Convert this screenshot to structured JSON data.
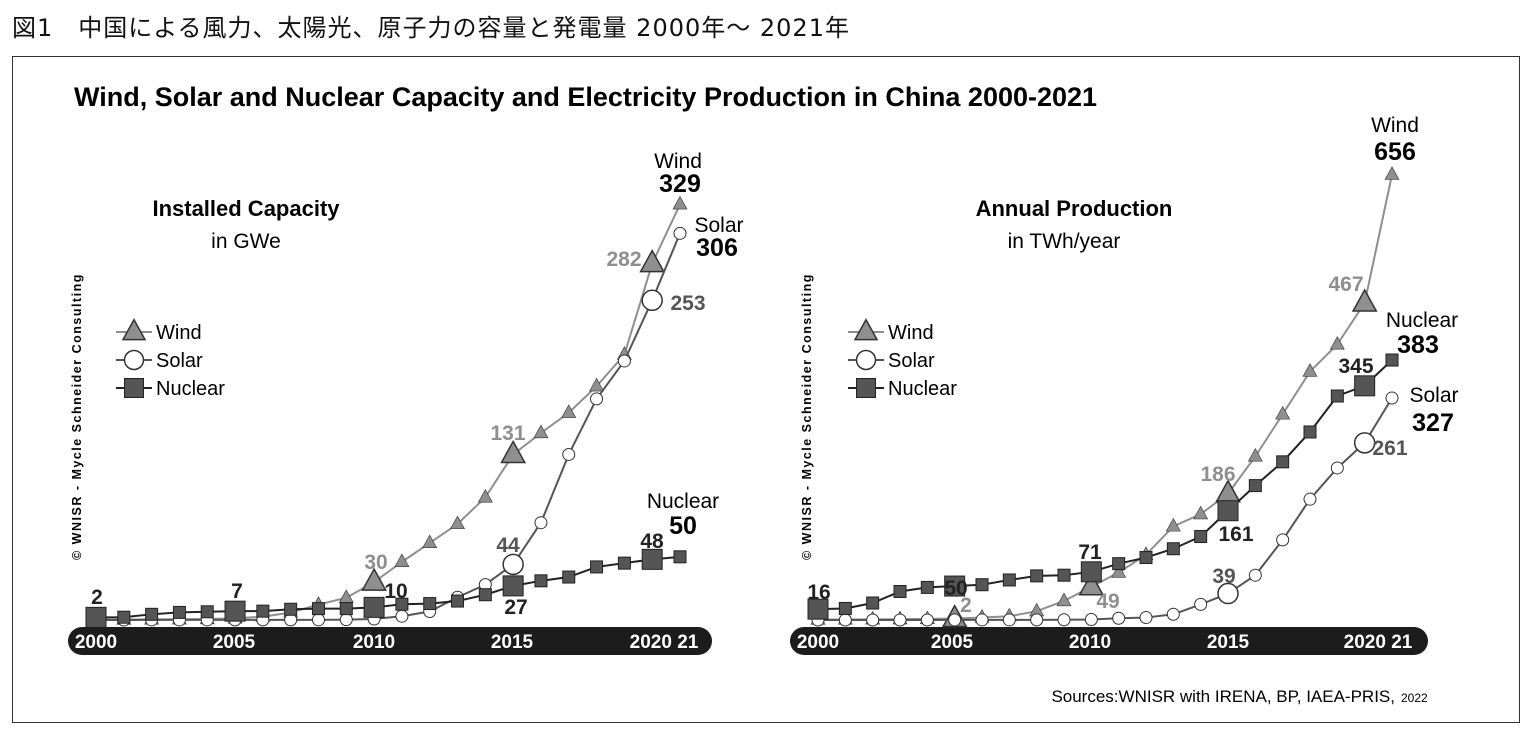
{
  "page_title": "図1　中国による風力、太陽光、原子力の容量と発電量 2000年〜 2021年",
  "figure": {
    "title": "Wind, Solar and Nuclear Capacity and Electricity Production in China 2000-2021",
    "copyright": "© WNISR - Mycle Schneider Consulting",
    "sources": "Sources:WNISR with IRENA, BP, IAEA-PRIS,",
    "sources_year": "2022"
  },
  "colors": {
    "wind": "#8f8f8f",
    "solar": "#555555",
    "nuclear": "#222222",
    "axis_band": "#1c1c1c"
  },
  "chart_data": [
    {
      "type": "line",
      "title": "Installed Capacity",
      "subtitle": "in GWe",
      "x": [
        2000,
        2001,
        2002,
        2003,
        2004,
        2005,
        2006,
        2007,
        2008,
        2009,
        2010,
        2011,
        2012,
        2013,
        2014,
        2015,
        2016,
        2017,
        2018,
        2019,
        2020,
        2021
      ],
      "x_tick_labels": [
        "2000",
        "2005",
        "2010",
        "2015",
        "2020 21"
      ],
      "ylim": [
        0,
        330
      ],
      "legend": [
        "Wind",
        "Solar",
        "Nuclear"
      ],
      "legend_position": "left",
      "series": [
        {
          "name": "Wind",
          "marker": "triangle",
          "values": [
            0.3,
            0.4,
            0.5,
            0.6,
            0.8,
            1.3,
            2.6,
            5.9,
            12.2,
            17.6,
            30,
            46,
            61,
            76,
            97,
            131,
            148,
            164,
            185,
            210,
            282,
            329
          ]
        },
        {
          "name": "Solar",
          "marker": "circle",
          "values": [
            0.02,
            0.02,
            0.05,
            0.05,
            0.06,
            0.07,
            0.08,
            0.1,
            0.14,
            0.3,
            0.8,
            3,
            6.7,
            18,
            28,
            44,
            77,
            131,
            175,
            205,
            253,
            306
          ]
        },
        {
          "name": "Nuclear",
          "marker": "square",
          "values": [
            2.1,
            2.2,
            4.5,
            6,
            6.5,
            7,
            7,
            8.5,
            9,
            9,
            10,
            12.5,
            13,
            15,
            20,
            27,
            31,
            34,
            42,
            45,
            48,
            50
          ]
        }
      ],
      "annotations": [
        {
          "label": "2",
          "series": "Nuclear",
          "year": 2000
        },
        {
          "label": "7",
          "series": "Nuclear",
          "year": 2005
        },
        {
          "label": "10",
          "series": "Nuclear",
          "year": 2010
        },
        {
          "label": "30",
          "series": "Wind",
          "year": 2010
        },
        {
          "label": "131",
          "series": "Wind",
          "year": 2015
        },
        {
          "label": "44",
          "series": "Solar",
          "year": 2015
        },
        {
          "label": "27",
          "series": "Nuclear",
          "year": 2015
        },
        {
          "label": "282",
          "series": "Wind",
          "year": 2020
        },
        {
          "label": "253",
          "series": "Solar",
          "year": 2020
        },
        {
          "label": "48",
          "series": "Nuclear",
          "year": 2020
        }
      ],
      "end_labels": [
        {
          "series": "Wind",
          "name": "Wind",
          "value": "329"
        },
        {
          "series": "Solar",
          "name": "Solar",
          "value": "306"
        },
        {
          "series": "Nuclear",
          "name": "Nuclear",
          "value": "50"
        }
      ]
    },
    {
      "type": "line",
      "title": "Annual Production",
      "subtitle": "in TWh/year",
      "x": [
        2000,
        2001,
        2002,
        2003,
        2004,
        2005,
        2006,
        2007,
        2008,
        2009,
        2010,
        2011,
        2012,
        2013,
        2014,
        2015,
        2016,
        2017,
        2018,
        2019,
        2020,
        2021
      ],
      "x_tick_labels": [
        "2000",
        "2005",
        "2010",
        "2015",
        "2020 21"
      ],
      "ylim": [
        0,
        660
      ],
      "legend": [
        "Wind",
        "Solar",
        "Nuclear"
      ],
      "legend_position": "left",
      "series": [
        {
          "name": "Wind",
          "marker": "triangle",
          "values": [
            0.6,
            0.8,
            1,
            1.3,
            1.6,
            2,
            3.7,
            5.6,
            13,
            28,
            49,
            70,
            96,
            138,
            156,
            186,
            241,
            303,
            366,
            406,
            467,
            656
          ]
        },
        {
          "name": "Solar",
          "marker": "circle",
          "values": [
            0.02,
            0.02,
            0.02,
            0.03,
            0.04,
            0.1,
            0.1,
            0.1,
            0.2,
            0.3,
            0.7,
            2.6,
            3.6,
            8.4,
            23,
            39,
            66,
            118,
            178,
            224,
            261,
            327
          ]
        },
        {
          "name": "Nuclear",
          "marker": "square",
          "values": [
            16,
            17,
            25,
            42,
            48,
            50,
            52,
            59,
            65,
            66,
            71,
            83,
            92,
            105,
            123,
            161,
            198,
            233,
            277,
            330,
            345,
            383
          ]
        }
      ],
      "annotations": [
        {
          "label": "16",
          "series": "Nuclear",
          "year": 2000
        },
        {
          "label": "50",
          "series": "Nuclear",
          "year": 2005
        },
        {
          "label": "2",
          "series": "Wind",
          "year": 2005
        },
        {
          "label": "71",
          "series": "Nuclear",
          "year": 2010
        },
        {
          "label": "49",
          "series": "Wind",
          "year": 2010
        },
        {
          "label": "186",
          "series": "Wind",
          "year": 2015
        },
        {
          "label": "39",
          "series": "Solar",
          "year": 2015
        },
        {
          "label": "161",
          "series": "Nuclear",
          "year": 2015
        },
        {
          "label": "467",
          "series": "Wind",
          "year": 2020
        },
        {
          "label": "345",
          "series": "Nuclear",
          "year": 2020
        },
        {
          "label": "261",
          "series": "Solar",
          "year": 2020
        }
      ],
      "end_labels": [
        {
          "series": "Wind",
          "name": "Wind",
          "value": "656"
        },
        {
          "series": "Nuclear",
          "name": "Nuclear",
          "value": "383"
        },
        {
          "series": "Solar",
          "name": "Solar",
          "value": "327"
        }
      ]
    }
  ]
}
